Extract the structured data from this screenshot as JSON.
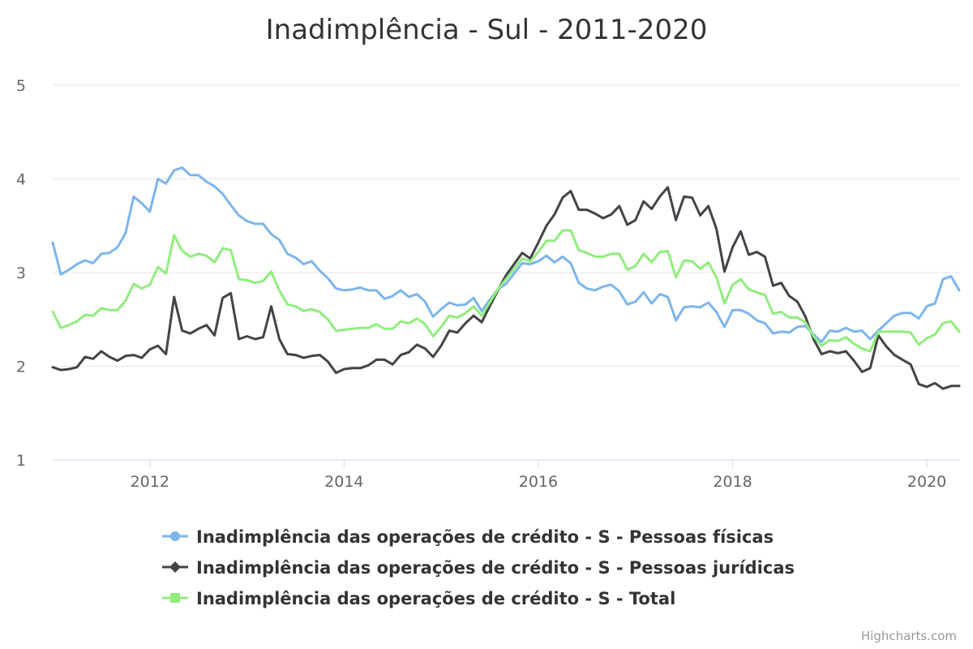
{
  "chart_data": {
    "type": "line",
    "title": "Inadimplência - Sul - 2011-2020",
    "xlabel": "",
    "ylabel": "",
    "x_start": "2011-01",
    "x_interval": "month",
    "xlim": [
      "2011-01",
      "2020-05"
    ],
    "ylim": [
      1,
      5
    ],
    "y_ticks": [
      "1",
      "2",
      "3",
      "4",
      "5"
    ],
    "x_ticks": [
      "2012",
      "2014",
      "2016",
      "2018",
      "2020"
    ],
    "grid": true,
    "legend_position": "bottom",
    "series": [
      {
        "name": "Inadimplência das operações de crédito - S - Pessoas físicas",
        "color": "#7cb5ec",
        "marker": "circle",
        "values": [
          3.32,
          2.98,
          3.03,
          3.09,
          3.13,
          3.1,
          3.2,
          3.21,
          3.27,
          3.42,
          3.81,
          3.74,
          3.65,
          4.0,
          3.95,
          4.09,
          4.12,
          4.04,
          4.04,
          3.97,
          3.92,
          3.84,
          3.72,
          3.61,
          3.55,
          3.52,
          3.52,
          3.41,
          3.35,
          3.2,
          3.16,
          3.09,
          3.12,
          3.02,
          2.94,
          2.83,
          2.81,
          2.82,
          2.84,
          2.81,
          2.81,
          2.72,
          2.75,
          2.81,
          2.74,
          2.77,
          2.69,
          2.53,
          2.61,
          2.68,
          2.65,
          2.66,
          2.73,
          2.59,
          2.71,
          2.82,
          2.88,
          2.99,
          3.1,
          3.09,
          3.12,
          3.18,
          3.11,
          3.17,
          3.1,
          2.89,
          2.83,
          2.81,
          2.85,
          2.87,
          2.8,
          2.66,
          2.69,
          2.79,
          2.67,
          2.77,
          2.74,
          2.49,
          2.63,
          2.64,
          2.63,
          2.68,
          2.58,
          2.42,
          2.6,
          2.6,
          2.56,
          2.49,
          2.46,
          2.35,
          2.37,
          2.36,
          2.42,
          2.43,
          2.34,
          2.26,
          2.38,
          2.37,
          2.41,
          2.37,
          2.38,
          2.29,
          2.38,
          2.46,
          2.54,
          2.57,
          2.57,
          2.51,
          2.64,
          2.67,
          2.93,
          2.96,
          2.81
        ]
      },
      {
        "name": "Inadimplência das operações de crédito - S - Pessoas jurídicas",
        "color": "#434348",
        "marker": "diamond",
        "values": [
          1.99,
          1.96,
          1.97,
          1.99,
          2.1,
          2.08,
          2.16,
          2.1,
          2.06,
          2.11,
          2.12,
          2.09,
          2.18,
          2.22,
          2.13,
          2.74,
          2.38,
          2.35,
          2.4,
          2.44,
          2.33,
          2.73,
          2.78,
          2.29,
          2.32,
          2.29,
          2.31,
          2.64,
          2.29,
          2.13,
          2.12,
          2.09,
          2.11,
          2.12,
          2.05,
          1.93,
          1.97,
          1.98,
          1.98,
          2.01,
          2.07,
          2.07,
          2.02,
          2.12,
          2.15,
          2.23,
          2.19,
          2.1,
          2.22,
          2.38,
          2.36,
          2.46,
          2.54,
          2.47,
          2.64,
          2.81,
          2.97,
          3.09,
          3.21,
          3.15,
          3.32,
          3.5,
          3.62,
          3.8,
          3.87,
          3.67,
          3.67,
          3.63,
          3.58,
          3.62,
          3.71,
          3.51,
          3.56,
          3.76,
          3.68,
          3.81,
          3.91,
          3.56,
          3.81,
          3.8,
          3.61,
          3.71,
          3.47,
          3.01,
          3.27,
          3.44,
          3.19,
          3.22,
          3.17,
          2.86,
          2.89,
          2.75,
          2.69,
          2.53,
          2.29,
          2.13,
          2.16,
          2.14,
          2.16,
          2.06,
          1.94,
          1.98,
          2.33,
          2.21,
          2.12,
          2.07,
          2.02,
          1.81,
          1.78,
          1.82,
          1.76,
          1.79,
          1.79
        ]
      },
      {
        "name": "Inadimplência das operações de crédito - S - Total",
        "color": "#90ed7d",
        "marker": "square",
        "values": [
          2.58,
          2.41,
          2.44,
          2.48,
          2.55,
          2.54,
          2.62,
          2.6,
          2.6,
          2.7,
          2.88,
          2.83,
          2.87,
          3.06,
          2.99,
          3.4,
          3.23,
          3.17,
          3.2,
          3.18,
          3.11,
          3.26,
          3.24,
          2.93,
          2.92,
          2.89,
          2.91,
          3.01,
          2.81,
          2.66,
          2.64,
          2.59,
          2.61,
          2.58,
          2.5,
          2.38,
          2.39,
          2.4,
          2.41,
          2.41,
          2.45,
          2.4,
          2.4,
          2.48,
          2.46,
          2.51,
          2.45,
          2.32,
          2.42,
          2.54,
          2.52,
          2.57,
          2.64,
          2.54,
          2.68,
          2.82,
          2.93,
          3.04,
          3.15,
          3.12,
          3.22,
          3.34,
          3.34,
          3.45,
          3.45,
          3.24,
          3.21,
          3.17,
          3.17,
          3.2,
          3.2,
          3.03,
          3.07,
          3.2,
          3.11,
          3.22,
          3.23,
          2.95,
          3.13,
          3.12,
          3.04,
          3.11,
          2.95,
          2.67,
          2.87,
          2.93,
          2.82,
          2.79,
          2.76,
          2.56,
          2.58,
          2.52,
          2.52,
          2.47,
          2.32,
          2.22,
          2.28,
          2.27,
          2.31,
          2.24,
          2.19,
          2.16,
          2.37,
          2.37,
          2.37,
          2.37,
          2.36,
          2.23,
          2.3,
          2.34,
          2.46,
          2.48,
          2.37
        ]
      }
    ]
  },
  "credits": "Highcharts.com"
}
